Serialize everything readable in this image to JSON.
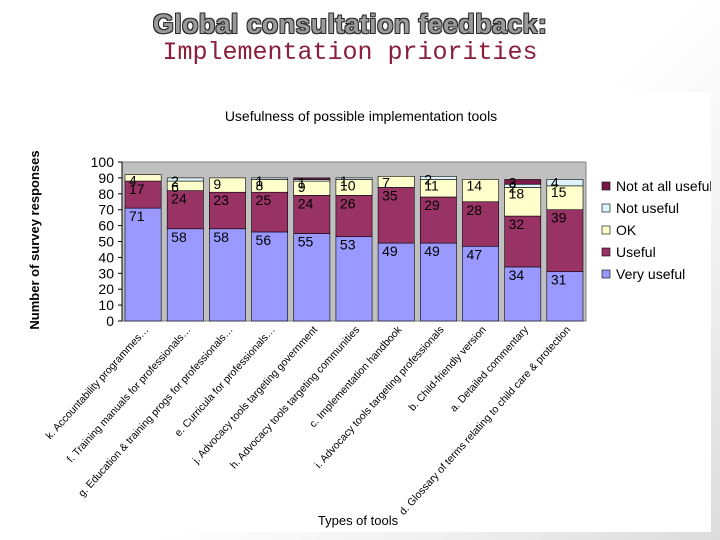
{
  "slide": {
    "title_line1": "Global consultation feedback:",
    "title_line2": "Implementation priorities"
  },
  "colors": {
    "not_at_all_useful": "#7a1a4a",
    "not_useful": "#ddf3fb",
    "ok": "#ffffcc",
    "useful": "#993366",
    "very_useful": "#9999ff",
    "title_red": "#8a1f3d"
  },
  "chart_data": {
    "type": "bar",
    "stacked": true,
    "title": "Usefulness of possible implementation tools",
    "xlabel": "Types of tools",
    "ylabel": "Number of survey responses",
    "ylim": [
      0,
      100
    ],
    "yticks": [
      0,
      10,
      20,
      30,
      40,
      50,
      60,
      70,
      80,
      90,
      100
    ],
    "categories": [
      "k. Accountability programmes…",
      "f. Training manuals for professionals…",
      "g. Education & training progs for professionals…",
      "e. Curricula for professionals…",
      "j. Advocacy tools targeting government",
      "h. Advocacy tools targeting communities",
      "c. Implementation handbook",
      "i. Advocacy tools targeting professionals",
      "b. Child-friendly version",
      "a. Detailed commentary",
      "d. Glossary of terms relating to child care & protection"
    ],
    "series": [
      {
        "name": "Very useful",
        "color_key": "very_useful",
        "values": [
          71,
          58,
          58,
          56,
          55,
          53,
          49,
          49,
          47,
          34,
          31
        ]
      },
      {
        "name": "Useful",
        "color_key": "useful",
        "values": [
          17,
          24,
          23,
          25,
          24,
          26,
          35,
          29,
          28,
          32,
          39
        ]
      },
      {
        "name": "OK",
        "color_key": "ok",
        "values": [
          4,
          6,
          9,
          8,
          9,
          10,
          7,
          11,
          14,
          18,
          15
        ]
      },
      {
        "name": "Not useful",
        "color_key": "not_useful",
        "values": [
          0,
          2,
          0,
          1,
          1,
          1,
          0,
          2,
          0,
          2,
          4
        ]
      },
      {
        "name": "Not at all useful",
        "color_key": "not_at_all_useful",
        "values": [
          0,
          0,
          0,
          0,
          1,
          0,
          0,
          0,
          0,
          3,
          0
        ]
      }
    ],
    "labels": {
      "Very useful": [
        "71",
        "58",
        "58",
        "56",
        "55",
        "53",
        "49",
        "49",
        "47",
        "34",
        "31"
      ],
      "Useful": [
        "17",
        "24",
        "23",
        "25",
        "24",
        "26",
        "35",
        "29",
        "28",
        "32",
        "39"
      ],
      "OK": [
        "4",
        "6",
        "9",
        "8",
        "9",
        "10",
        "7",
        "11",
        "14",
        "18",
        "15"
      ],
      "Not useful": [
        "",
        "2",
        "",
        "1",
        "1",
        "1",
        "",
        "2",
        "",
        "2",
        "4"
      ],
      "Not at all useful": [
        "",
        "",
        "",
        "",
        "",
        "",
        "",
        "",
        "",
        "3",
        ""
      ]
    },
    "legend": [
      "Not at all useful",
      "Not useful",
      "OK",
      "Useful",
      "Very useful"
    ],
    "legend_position": "right"
  }
}
